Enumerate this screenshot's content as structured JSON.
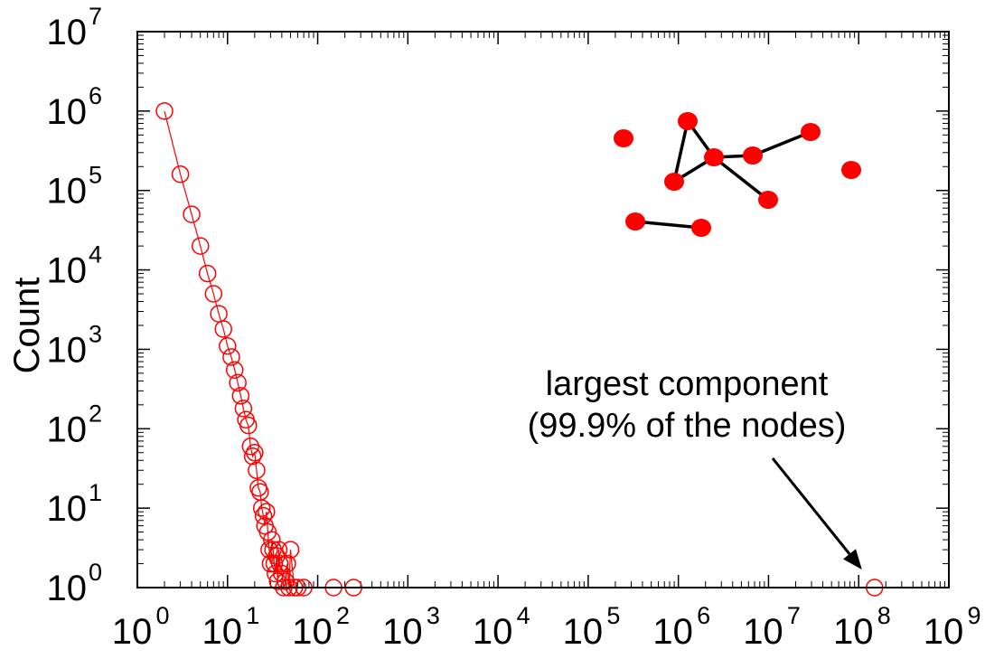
{
  "chart_data": {
    "type": "scatter",
    "xlabel": "",
    "ylabel": "Count",
    "xscale": "log",
    "yscale": "log",
    "xlim": [
      1,
      1000000000
    ],
    "ylim": [
      1,
      10000000
    ],
    "x_tick_exponents": [
      "0",
      "1",
      "2",
      "3",
      "4",
      "5",
      "6",
      "7",
      "8",
      "9"
    ],
    "y_tick_exponents": [
      "0",
      "1",
      "2",
      "3",
      "4",
      "5",
      "6",
      "7"
    ],
    "tick_base": "10",
    "marker": "open-circle",
    "color": "#ff0000",
    "series": [
      {
        "points": [
          [
            2,
            1000000
          ],
          [
            3,
            160000
          ],
          [
            4,
            50000
          ],
          [
            5,
            20000
          ],
          [
            6,
            9000
          ],
          [
            7,
            5000
          ],
          [
            8,
            2800
          ],
          [
            9,
            1800
          ],
          [
            10,
            1100
          ],
          [
            11,
            800
          ],
          [
            12,
            550
          ],
          [
            13,
            380
          ],
          [
            14,
            260
          ],
          [
            15,
            180
          ],
          [
            16,
            130
          ],
          [
            17,
            110
          ],
          [
            18,
            60
          ],
          [
            19,
            45
          ],
          [
            20,
            50
          ],
          [
            21,
            30
          ],
          [
            22,
            18
          ],
          [
            23,
            16
          ],
          [
            24,
            10
          ],
          [
            25,
            8
          ],
          [
            26,
            6
          ],
          [
            27,
            9
          ],
          [
            28,
            5
          ],
          [
            29,
            3
          ],
          [
            30,
            2
          ],
          [
            31,
            4
          ],
          [
            32,
            3
          ],
          [
            33,
            2
          ],
          [
            34,
            1.5
          ],
          [
            35,
            2.5
          ],
          [
            36,
            1.2
          ],
          [
            37,
            3
          ],
          [
            38,
            2
          ],
          [
            40,
            1.5
          ],
          [
            42,
            1
          ],
          [
            44,
            1.2
          ],
          [
            46,
            2
          ],
          [
            48,
            1
          ],
          [
            50,
            3
          ],
          [
            55,
            1
          ],
          [
            60,
            1
          ],
          [
            70,
            1
          ],
          [
            150,
            1
          ],
          [
            250,
            1
          ],
          [
            150000000,
            1
          ]
        ]
      }
    ],
    "annotation": {
      "line1": "largest component",
      "line2": "(99.9% of the nodes)"
    }
  },
  "inset": {
    "node_color": "#ff0000",
    "edge_color": "#000000"
  }
}
